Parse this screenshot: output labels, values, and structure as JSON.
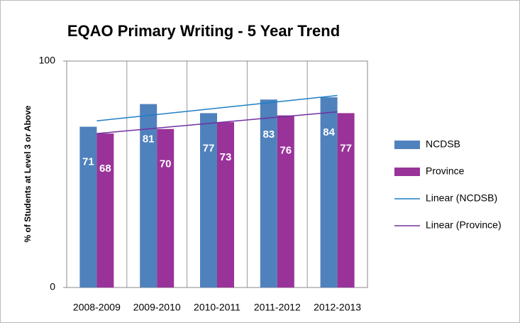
{
  "chart_data": {
    "type": "bar",
    "title": "EQAO Primary Writing - 5 Year Trend",
    "y_label": "% of Students at Level 3 or Above",
    "categories": [
      "2008-2009",
      "2009-2010",
      "2010-2011",
      "2011-2012",
      "2012-2013"
    ],
    "series": [
      {
        "name": "NCDSB",
        "color": "#4f81bd",
        "values": [
          71,
          81,
          77,
          83,
          84
        ]
      },
      {
        "name": "Province",
        "color": "#993399",
        "values": [
          68,
          70,
          73,
          76,
          77
        ]
      }
    ],
    "trendlines": [
      {
        "name": "Linear (NCDSB)",
        "color": "#1f7fc4",
        "series": 0
      },
      {
        "name": "Linear (Province)",
        "color": "#7030a0",
        "series": 1
      }
    ],
    "ylim": [
      0,
      100
    ],
    "yticks": [
      0,
      100
    ],
    "grid": true,
    "legend": "right"
  }
}
